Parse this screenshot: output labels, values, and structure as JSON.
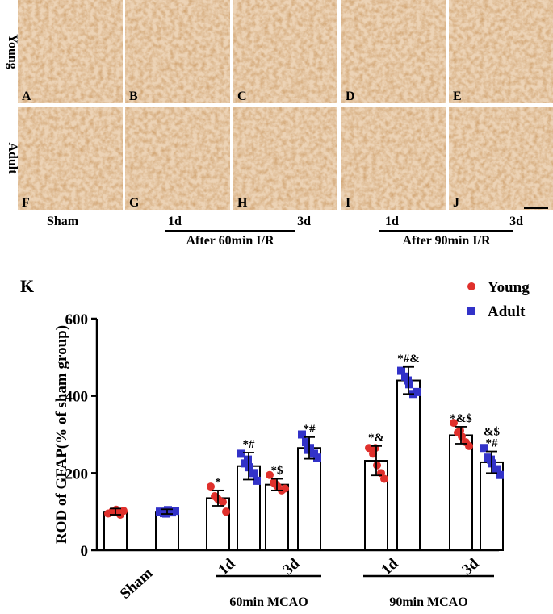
{
  "micrographs": {
    "row_labels": [
      "Young",
      "Adult"
    ],
    "panel_labels": [
      "A",
      "B",
      "C",
      "D",
      "E",
      "F",
      "G",
      "H",
      "I",
      "J"
    ],
    "column_labels": [
      "Sham",
      "1d",
      "3d",
      "1d",
      "3d"
    ],
    "group_labels": [
      "After 60min I/R",
      "After 90min I/R"
    ]
  },
  "chart_data": {
    "type": "bar",
    "panel_label": "K",
    "ylabel": "ROD of GFAP(% of sham group)",
    "categories": [
      "Sham",
      "1d",
      "3d",
      "1d",
      "3d"
    ],
    "group_labels": [
      "60min MCAO",
      "90min MCAO"
    ],
    "ylim": [
      0,
      600
    ],
    "yticks": [
      0,
      200,
      400,
      600
    ],
    "series": [
      {
        "name": "Young",
        "color": "#e0302c",
        "values": [
          100,
          135,
          170,
          232,
          298
        ],
        "errors": [
          8,
          20,
          15,
          38,
          22
        ],
        "points": [
          [
            95,
            100,
            105,
            92,
            102,
            98
          ],
          [
            165,
            140,
            130,
            125,
            100,
            135
          ],
          [
            195,
            175,
            165,
            155,
            160,
            170
          ],
          [
            265,
            250,
            220,
            200,
            185,
            265
          ],
          [
            330,
            305,
            295,
            280,
            270,
            310
          ]
        ],
        "annotations": [
          null,
          [
            "*"
          ],
          [
            "*$"
          ],
          [
            "*&"
          ],
          [
            "*&$"
          ]
        ]
      },
      {
        "name": "Adult",
        "color": "#3232c8",
        "values": [
          100,
          218,
          265,
          440,
          228
        ],
        "errors": [
          6,
          35,
          28,
          35,
          28
        ],
        "points": [
          [
            100,
            96,
            104,
            98,
            102,
            95
          ],
          [
            250,
            225,
            215,
            200,
            180,
            235
          ],
          [
            300,
            280,
            265,
            250,
            240,
            260
          ],
          [
            465,
            450,
            430,
            405,
            410,
            440
          ],
          [
            265,
            240,
            225,
            210,
            195,
            235
          ]
        ],
        "annotations": [
          null,
          [
            "*#"
          ],
          [
            "*#"
          ],
          [
            "*#&"
          ],
          [
            "&$",
            "*#"
          ]
        ]
      }
    ]
  }
}
